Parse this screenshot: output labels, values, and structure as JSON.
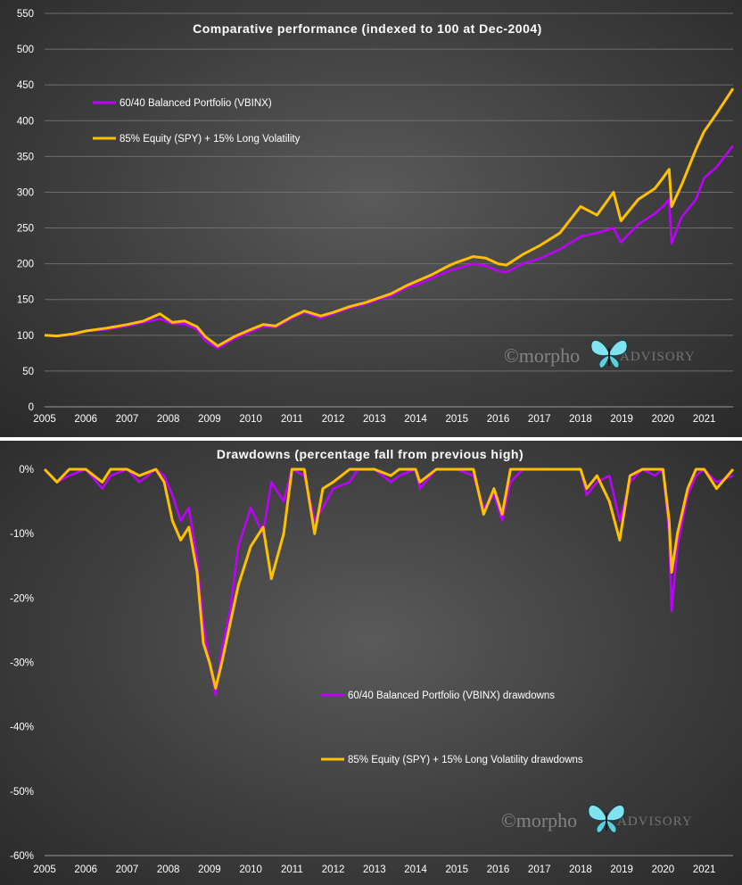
{
  "chart_data": [
    {
      "type": "line",
      "title": "Comparative  performance  (indexed to 100 at Dec-2004)",
      "xlabel": "",
      "ylabel": "",
      "x_ticks": [
        "2005",
        "2006",
        "2007",
        "2008",
        "2009",
        "2010",
        "2011",
        "2012",
        "2013",
        "2014",
        "2015",
        "2016",
        "2017",
        "2018",
        "2019",
        "2020",
        "2021"
      ],
      "y_ticks": [
        "0",
        "50",
        "100",
        "150",
        "200",
        "250",
        "300",
        "350",
        "400",
        "450",
        "500",
        "550"
      ],
      "xlim": [
        2005.0,
        2021.7
      ],
      "ylim": [
        0,
        550
      ],
      "grid": true,
      "legend_position": "top-left",
      "series": [
        {
          "name": "60/40 Balanced Portfolio (VBINX)",
          "color": "#c000ff",
          "x": [
            2005.0,
            2005.3,
            2005.7,
            2006.0,
            2006.5,
            2007.0,
            2007.4,
            2007.8,
            2008.1,
            2008.4,
            2008.7,
            2008.9,
            2009.2,
            2009.6,
            2010.0,
            2010.3,
            2010.6,
            2011.0,
            2011.3,
            2011.7,
            2012.0,
            2012.4,
            2012.8,
            2013.0,
            2013.4,
            2013.8,
            2014.0,
            2014.4,
            2014.8,
            2015.0,
            2015.4,
            2015.7,
            2016.0,
            2016.2,
            2016.6,
            2017.0,
            2017.5,
            2018.0,
            2018.4,
            2018.8,
            2018.98,
            2019.4,
            2019.8,
            2020.0,
            2020.15,
            2020.21,
            2020.45,
            2020.8,
            2021.0,
            2021.3,
            2021.7
          ],
          "y": [
            100,
            99,
            101,
            106,
            108,
            113,
            118,
            123,
            116,
            116,
            108,
            92,
            82,
            95,
            105,
            112,
            111,
            124,
            132,
            124,
            130,
            138,
            144,
            148,
            155,
            167,
            170,
            180,
            190,
            193,
            200,
            197,
            190,
            188,
            200,
            207,
            220,
            238,
            243,
            250,
            230,
            255,
            270,
            280,
            290,
            228,
            265,
            290,
            320,
            335,
            365
          ]
        },
        {
          "name": "85% Equity (SPY) + 15% Long Volatility",
          "color": "#ffc000",
          "x": [
            2005.0,
            2005.3,
            2005.7,
            2006.0,
            2006.5,
            2007.0,
            2007.4,
            2007.8,
            2008.1,
            2008.4,
            2008.7,
            2008.9,
            2009.2,
            2009.6,
            2010.0,
            2010.3,
            2010.6,
            2011.0,
            2011.3,
            2011.7,
            2012.0,
            2012.4,
            2012.8,
            2013.0,
            2013.4,
            2013.8,
            2014.0,
            2014.4,
            2014.8,
            2015.0,
            2015.4,
            2015.7,
            2016.0,
            2016.2,
            2016.6,
            2017.0,
            2017.5,
            2018.0,
            2018.4,
            2018.8,
            2018.98,
            2019.4,
            2019.8,
            2020.0,
            2020.15,
            2020.21,
            2020.45,
            2020.8,
            2021.0,
            2021.3,
            2021.7
          ],
          "y": [
            100,
            99,
            102,
            106,
            110,
            115,
            120,
            130,
            118,
            120,
            112,
            98,
            85,
            98,
            108,
            115,
            113,
            126,
            134,
            127,
            132,
            140,
            146,
            150,
            158,
            170,
            175,
            185,
            197,
            202,
            210,
            208,
            200,
            198,
            213,
            225,
            243,
            280,
            268,
            300,
            260,
            290,
            305,
            320,
            332,
            280,
            310,
            360,
            385,
            410,
            445
          ]
        }
      ]
    },
    {
      "type": "line",
      "title": "Drawdowns (percentage fall from previous high)",
      "xlabel": "",
      "ylabel": "",
      "x_ticks": [
        "2005",
        "2006",
        "2007",
        "2008",
        "2009",
        "2010",
        "2011",
        "2012",
        "2013",
        "2014",
        "2015",
        "2016",
        "2017",
        "2018",
        "2019",
        "2020",
        "2021"
      ],
      "y_ticks": [
        "0%",
        "-10%",
        "-20%",
        "-30%",
        "-40%",
        "-50%",
        "-60%"
      ],
      "xlim": [
        2005.0,
        2021.7
      ],
      "ylim": [
        -60,
        0
      ],
      "grid": false,
      "legend_position": "center-right",
      "series": [
        {
          "name": "60/40 Balanced Portfolio (VBINX) drawdowns",
          "color": "#c000ff",
          "x": [
            2005.0,
            2005.3,
            2005.6,
            2006.0,
            2006.4,
            2006.6,
            2007.0,
            2007.3,
            2007.7,
            2007.9,
            2008.1,
            2008.3,
            2008.5,
            2008.7,
            2008.85,
            2009.0,
            2009.15,
            2009.3,
            2009.5,
            2009.7,
            2010.0,
            2010.3,
            2010.5,
            2010.8,
            2011.0,
            2011.3,
            2011.55,
            2011.75,
            2012.0,
            2012.4,
            2012.6,
            2013.0,
            2013.4,
            2013.6,
            2014.0,
            2014.1,
            2014.5,
            2015.0,
            2015.4,
            2015.65,
            2015.9,
            2016.1,
            2016.3,
            2016.6,
            2017.0,
            2017.5,
            2018.0,
            2018.15,
            2018.4,
            2018.7,
            2018.95,
            2019.2,
            2019.5,
            2019.8,
            2020.0,
            2020.15,
            2020.21,
            2020.35,
            2020.6,
            2020.8,
            2021.0,
            2021.3,
            2021.7
          ],
          "y": [
            0,
            -2,
            -1,
            0,
            -3,
            -1,
            0,
            -2,
            0,
            -1,
            -4,
            -8,
            -6,
            -14,
            -24,
            -30,
            -35,
            -28,
            -22,
            -12,
            -6,
            -10,
            -2,
            -5,
            0,
            -1,
            -8,
            -6,
            -3,
            -2,
            0,
            0,
            -2,
            -1,
            0,
            -3,
            0,
            0,
            -1,
            -6,
            -4,
            -8,
            -2,
            0,
            0,
            0,
            0,
            -4,
            -2,
            -1,
            -8,
            -2,
            0,
            -1,
            0,
            -10,
            -22,
            -12,
            -4,
            -1,
            0,
            -2,
            -1
          ]
        },
        {
          "name": "85% Equity (SPY) + 15% Long Volatility drawdowns",
          "color": "#ffc000",
          "x": [
            2005.0,
            2005.3,
            2005.6,
            2006.0,
            2006.4,
            2006.6,
            2007.0,
            2007.3,
            2007.7,
            2007.9,
            2008.1,
            2008.3,
            2008.5,
            2008.7,
            2008.85,
            2009.0,
            2009.15,
            2009.3,
            2009.5,
            2009.7,
            2010.0,
            2010.3,
            2010.5,
            2010.8,
            2011.0,
            2011.3,
            2011.55,
            2011.75,
            2012.0,
            2012.4,
            2012.6,
            2013.0,
            2013.4,
            2013.6,
            2014.0,
            2014.1,
            2014.5,
            2015.0,
            2015.4,
            2015.65,
            2015.9,
            2016.1,
            2016.3,
            2016.6,
            2017.0,
            2017.5,
            2018.0,
            2018.15,
            2018.4,
            2018.7,
            2018.95,
            2019.2,
            2019.5,
            2019.8,
            2020.0,
            2020.15,
            2020.21,
            2020.35,
            2020.6,
            2020.8,
            2021.0,
            2021.3,
            2021.7
          ],
          "y": [
            0,
            -2,
            0,
            0,
            -2,
            0,
            0,
            -1,
            0,
            -2,
            -8,
            -11,
            -9,
            -16,
            -27,
            -30,
            -34,
            -30,
            -24,
            -18,
            -12,
            -9,
            -17,
            -10,
            0,
            0,
            -10,
            -3,
            -2,
            0,
            0,
            0,
            -1,
            0,
            0,
            -2,
            0,
            0,
            0,
            -7,
            -3,
            -7,
            0,
            0,
            0,
            0,
            0,
            -3,
            -1,
            -5,
            -11,
            -1,
            0,
            0,
            0,
            -8,
            -16,
            -10,
            -3,
            0,
            0,
            -3,
            0
          ]
        }
      ]
    }
  ],
  "watermark": {
    "copyright": "©",
    "brand": "morpho",
    "suffix": "ADVISORY",
    "icon": "butterfly-icon"
  }
}
